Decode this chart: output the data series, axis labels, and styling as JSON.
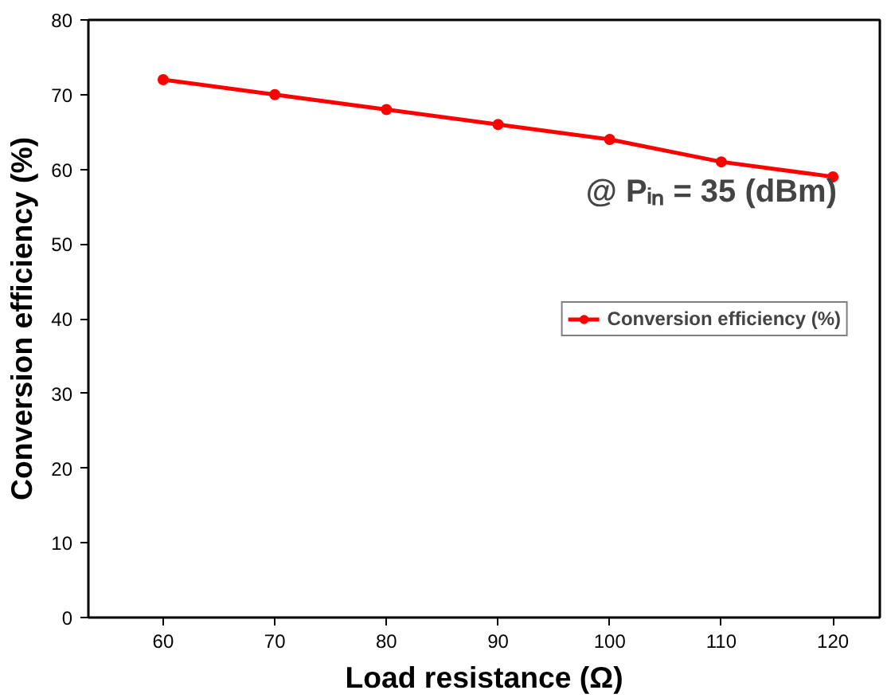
{
  "chart_data": {
    "type": "line",
    "xlabel": "Load resistance (Ω)",
    "ylabel": "Conversion efficiency (%)",
    "x": [
      60,
      70,
      80,
      90,
      100,
      110,
      120
    ],
    "series": [
      {
        "name": "Conversion efficiency (%)",
        "color": "#ff0000",
        "values": [
          72,
          70,
          68,
          66,
          64,
          61,
          59
        ]
      }
    ],
    "xlim": [
      53.3,
      124.2
    ],
    "xticks": [
      60,
      70,
      80,
      90,
      100,
      110,
      120
    ],
    "ylim": [
      0,
      80
    ],
    "yticks": [
      0,
      10,
      20,
      30,
      40,
      50,
      60,
      70,
      80
    ],
    "annotations": [
      "@ Pᵢₙ = 35 (dBm)"
    ],
    "legend": "right",
    "marker": "circle",
    "line_style": "solid",
    "grid": false
  }
}
